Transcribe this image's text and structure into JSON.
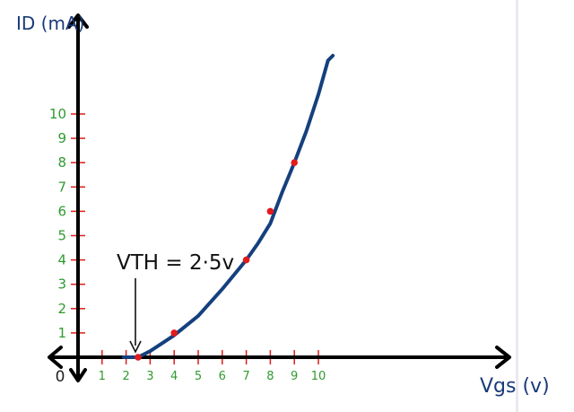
{
  "chart_data": {
    "type": "line",
    "xlabel": "Vgs (v)",
    "ylabel": "ID (mA)",
    "xlim": [
      0,
      11
    ],
    "ylim": [
      0,
      13
    ],
    "x_ticks": [
      "1",
      "2",
      "3",
      "4",
      "5",
      "6",
      "7",
      "8",
      "9",
      "10"
    ],
    "y_ticks": [
      "1",
      "2",
      "3",
      "4",
      "5",
      "6",
      "7",
      "8",
      "9",
      "10"
    ],
    "origin_label": "0",
    "series": [
      {
        "curve": [
          [
            2.5,
            0
          ],
          [
            3,
            0.25
          ],
          [
            4,
            0.9
          ],
          [
            5,
            1.7
          ],
          [
            6,
            2.8
          ],
          [
            6.5,
            3.4
          ],
          [
            7,
            4
          ],
          [
            7.5,
            4.7
          ],
          [
            8,
            5.5
          ],
          [
            8.5,
            6.8
          ],
          [
            9,
            8
          ],
          [
            9.5,
            9.3
          ],
          [
            10,
            10.8
          ],
          [
            10.4,
            12.2
          ],
          [
            10.6,
            12.4
          ]
        ],
        "points": [
          [
            2.5,
            0
          ],
          [
            4,
            1
          ],
          [
            7,
            4
          ],
          [
            8,
            6
          ],
          [
            9,
            8
          ]
        ]
      }
    ],
    "annotation": {
      "text": "VTH = 2·5v",
      "x": 2.5,
      "y": 0
    },
    "grid": false
  },
  "style": {
    "axis_color": "#1a3a7a",
    "curve_color": "#15407e",
    "point_color": "#e11b1b",
    "tick_color": "#e11b1b",
    "tick_label_color": "#2f9a2f",
    "annotation_color": "#111111"
  }
}
